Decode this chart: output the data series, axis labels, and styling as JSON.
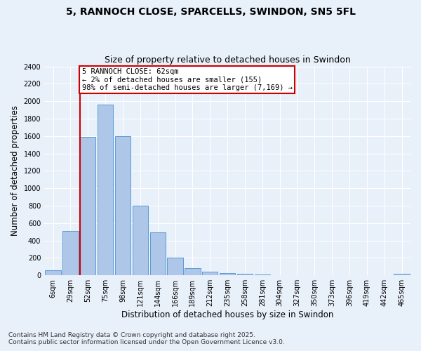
{
  "title1": "5, RANNOCH CLOSE, SPARCELLS, SWINDON, SN5 5FL",
  "title2": "Size of property relative to detached houses in Swindon",
  "xlabel": "Distribution of detached houses by size in Swindon",
  "ylabel": "Number of detached properties",
  "categories": [
    "6sqm",
    "29sqm",
    "52sqm",
    "75sqm",
    "98sqm",
    "121sqm",
    "144sqm",
    "166sqm",
    "189sqm",
    "212sqm",
    "235sqm",
    "258sqm",
    "281sqm",
    "304sqm",
    "327sqm",
    "350sqm",
    "373sqm",
    "396sqm",
    "419sqm",
    "442sqm",
    "465sqm"
  ],
  "values": [
    55,
    510,
    1590,
    1960,
    1600,
    800,
    490,
    200,
    85,
    40,
    25,
    15,
    10,
    5,
    3,
    2,
    1,
    0,
    0,
    0,
    15
  ],
  "bar_color": "#aec6e8",
  "bar_edge_color": "#5b9bd5",
  "vline_x_index": 2,
  "vline_color": "#cc0000",
  "annotation_title": "5 RANNOCH CLOSE: 62sqm",
  "annotation_line1": "← 2% of detached houses are smaller (155)",
  "annotation_line2": "98% of semi-detached houses are larger (7,169) →",
  "annotation_box_color": "#cc0000",
  "ylim": [
    0,
    2400
  ],
  "yticks": [
    0,
    200,
    400,
    600,
    800,
    1000,
    1200,
    1400,
    1600,
    1800,
    2000,
    2200,
    2400
  ],
  "footer1": "Contains HM Land Registry data © Crown copyright and database right 2025.",
  "footer2": "Contains public sector information licensed under the Open Government Licence v3.0.",
  "bg_color": "#e8f0fa",
  "plot_bg_color": "#e8f0fa",
  "grid_color": "#ffffff",
  "title_fontsize": 10,
  "subtitle_fontsize": 9,
  "tick_fontsize": 7,
  "axis_label_fontsize": 8.5,
  "footer_fontsize": 6.5
}
